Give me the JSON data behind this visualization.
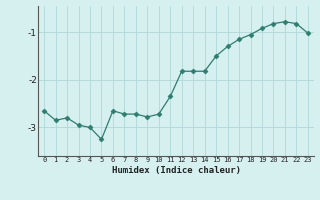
{
  "x": [
    0,
    1,
    2,
    3,
    4,
    5,
    6,
    7,
    8,
    9,
    10,
    11,
    12,
    13,
    14,
    15,
    16,
    17,
    18,
    19,
    20,
    21,
    22,
    23
  ],
  "y": [
    -2.65,
    -2.85,
    -2.8,
    -2.95,
    -3.0,
    -3.25,
    -2.65,
    -2.72,
    -2.72,
    -2.78,
    -2.72,
    -2.35,
    -1.82,
    -1.82,
    -1.82,
    -1.5,
    -1.3,
    -1.15,
    -1.05,
    -0.92,
    -0.82,
    -0.78,
    -0.82,
    -1.02
  ],
  "line_color": "#2e7d6e",
  "marker": "D",
  "marker_size": 2.5,
  "bg_color": "#d6f0f0",
  "grid_color": "#b0d8d8",
  "xlabel": "Humidex (Indice chaleur)",
  "ylim": [
    -3.6,
    -0.45
  ],
  "xlim": [
    -0.5,
    23.5
  ],
  "yticks": [
    -3,
    -2,
    -1
  ],
  "xticks": [
    0,
    1,
    2,
    3,
    4,
    5,
    6,
    7,
    8,
    9,
    10,
    11,
    12,
    13,
    14,
    15,
    16,
    17,
    18,
    19,
    20,
    21,
    22,
    23
  ],
  "xlabel_fontsize": 6.5,
  "xlabel_fontweight": "bold",
  "xtick_fontsize": 5.0,
  "ytick_fontsize": 6.5
}
